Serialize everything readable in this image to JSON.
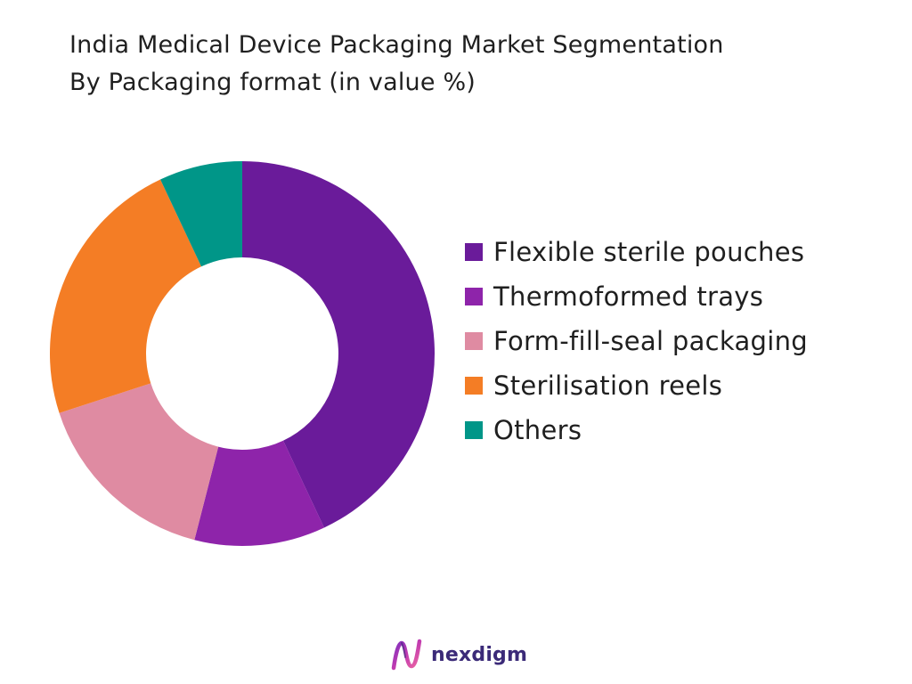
{
  "title_line1": "India Medical Device Packaging Market Segmentation",
  "title_line2": "By Packaging format (in value %)",
  "chart_data": {
    "type": "pie",
    "donut": true,
    "title": "India Medical Device Packaging Market Segmentation By Packaging format (in value %)",
    "legend_position": "right",
    "categories": [
      "Flexible sterile pouches",
      "Thermoformed trays",
      "Form-fill-seal packaging",
      "Sterilisation reels",
      "Others"
    ],
    "values": [
      43,
      11,
      16,
      23,
      7
    ],
    "colors": [
      "#6a1b9a",
      "#8e24aa",
      "#df8ba2",
      "#f47d25",
      "#009688"
    ]
  },
  "brand": {
    "name": "nexdigm",
    "logo_icon": "nexdigm-logo-icon"
  }
}
